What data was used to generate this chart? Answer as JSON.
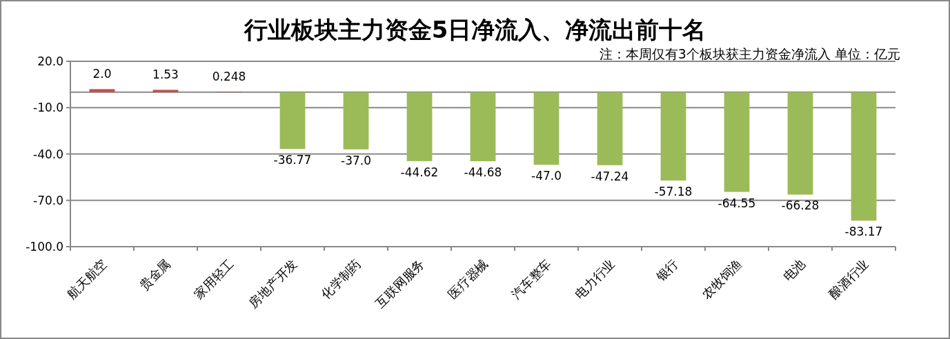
{
  "chart_data": {
    "type": "bar",
    "title": "行业板块主力资金5日净流入、净流出前十名",
    "annotations": [
      "注：本周仅有3个板块获主力资金净流入 单位：亿元"
    ],
    "categories": [
      "航天航空",
      "贵金属",
      "家用轻工",
      "房地产开发",
      "化学制药",
      "互联网服务",
      "医疗器械",
      "汽车整车",
      "电力行业",
      "银行",
      "农牧饲渔",
      "电池",
      "酿酒行业"
    ],
    "values": [
      2.0,
      1.53,
      0.248,
      -36.77,
      -37.0,
      -44.62,
      -44.68,
      -47.0,
      -47.24,
      -57.18,
      -64.55,
      -66.28,
      -83.17
    ],
    "value_labels": [
      "2.0",
      "1.53",
      "0.248",
      "-36.77",
      "-37.0",
      "-44.62",
      "-44.68",
      "-47.0",
      "-47.24",
      "-57.18",
      "-64.55",
      "-66.28",
      "-83.17"
    ],
    "colors": [
      "#c0504d",
      "#c0504d",
      "#c0504d",
      "#9bbb59",
      "#9bbb59",
      "#9bbb59",
      "#9bbb59",
      "#9bbb59",
      "#9bbb59",
      "#9bbb59",
      "#9bbb59",
      "#9bbb59",
      "#9bbb59"
    ],
    "ylim": [
      -100,
      20
    ],
    "yticks": [
      {
        "value": 20,
        "label": "20.0"
      },
      {
        "value": -10,
        "label": "-10.0"
      },
      {
        "value": -40,
        "label": "-40.0"
      },
      {
        "value": -70,
        "label": "-70.0"
      },
      {
        "value": -100,
        "label": "-100.0"
      }
    ],
    "grid": "y"
  }
}
